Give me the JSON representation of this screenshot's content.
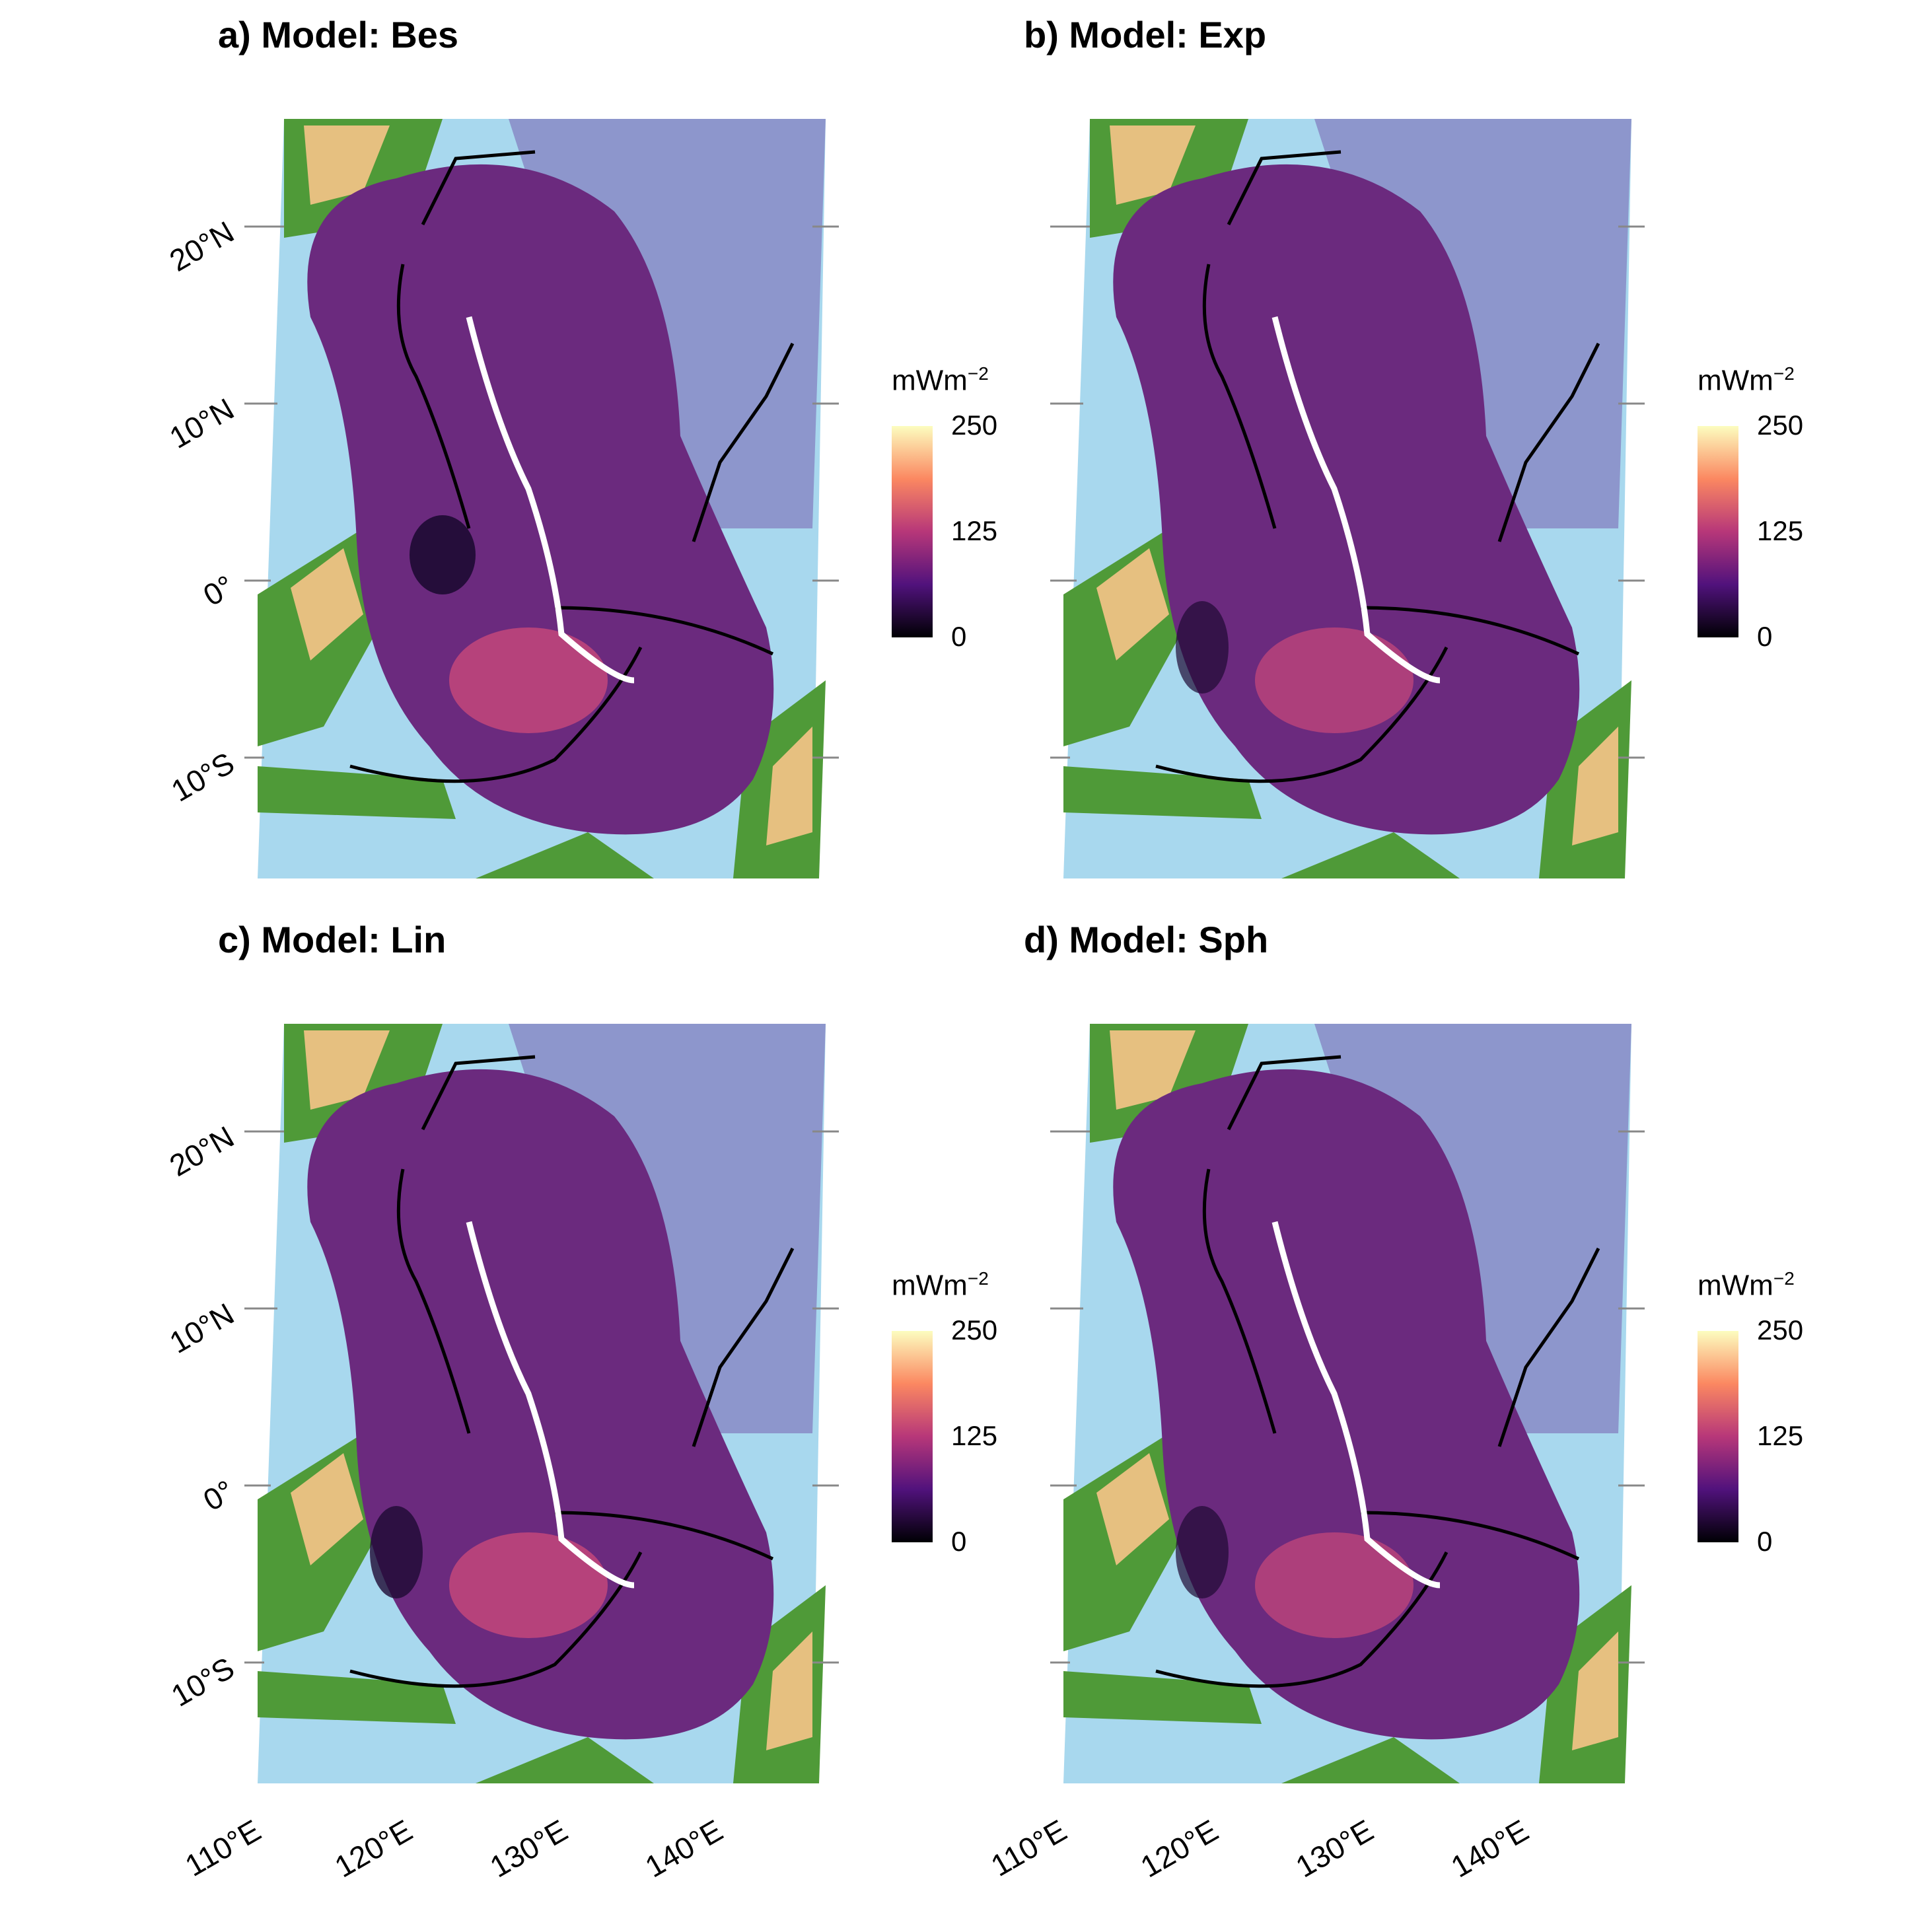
{
  "panels": [
    {
      "title": "a) Model: Bes"
    },
    {
      "title": "b) Model: Exp"
    },
    {
      "title": "c) Model: Lin"
    },
    {
      "title": "d) Model: Sph"
    }
  ],
  "axes": {
    "lat_labels": [
      "20°N",
      "10°N",
      "0°",
      "10°S"
    ],
    "lon_labels": [
      "110°E",
      "120°E",
      "130°E",
      "140°E"
    ]
  },
  "legend": {
    "unit_base": "mWm",
    "unit_exp": "−2",
    "ticks": [
      "250",
      "125",
      "0"
    ],
    "colors": [
      "#fcfdbf",
      "#fb8861",
      "#b73779",
      "#51127c",
      "#000004"
    ]
  },
  "colors": {
    "ocean_shallow": "#a8d8ee",
    "ocean_deep": "#8a8fc8",
    "land_low": "#3f8a2e",
    "land_high": "#e6c080",
    "heatflow_field": "#6b2a7e",
    "heatflow_high": "#c9497a",
    "heatflow_low": "#1e0a33",
    "trench_lines": "#000000",
    "plate_boundary": "#ffffff"
  }
}
